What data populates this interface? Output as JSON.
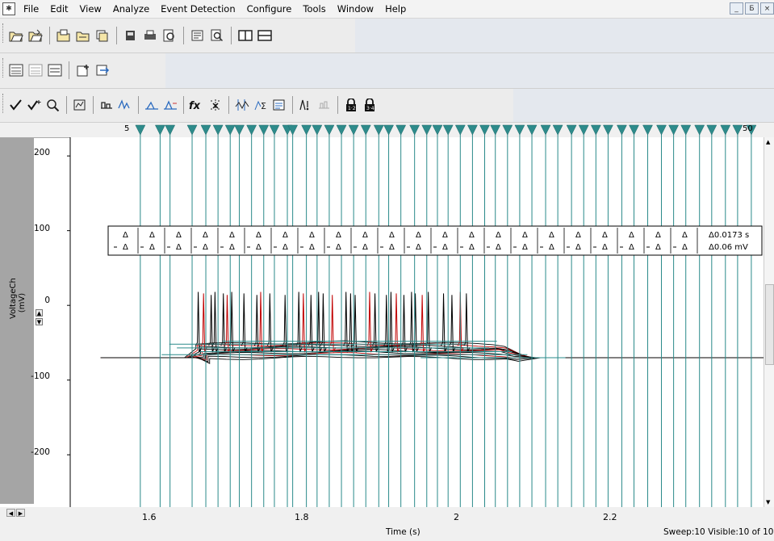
{
  "menubar": {
    "items": [
      "File",
      "Edit",
      "View",
      "Analyze",
      "Event Detection",
      "Configure",
      "Tools",
      "Window",
      "Help"
    ]
  },
  "window_buttons": [
    "_",
    "Б",
    "×"
  ],
  "toolbars": [
    {
      "icons": [
        "open-file-icon",
        "open-folder-icon",
        "sep",
        "open-data-icon",
        "save-icon",
        "save-all-icon",
        "sep",
        "print-device-icon",
        "print-icon",
        "print-preview-icon",
        "sep",
        "import-icon",
        "find-icon",
        "sep",
        "tile-vertical-icon",
        "tile-horizontal-icon"
      ]
    },
    {
      "icons": [
        "tile-windows-icon",
        "tile-disabled-icon",
        "arrange-icon",
        "sep",
        "insert-icon",
        "export-icon"
      ]
    },
    {
      "icons": [
        "checkmark-icon",
        "checkmark-plus-icon",
        "zoom-icon",
        "sep",
        "zoom-box-icon",
        "sep",
        "baseline-icon",
        "peak-icon",
        "sep",
        "threshold-icon",
        "rise-icon",
        "sep",
        "fx-icon",
        "fit-icon",
        "sep",
        "cursor-icon",
        "stats-icon",
        "results-icon",
        "sep",
        "event-icon",
        "disabled-icon",
        "sep",
        "lock-12-icon",
        "lock-34-icon"
      ]
    }
  ],
  "cursor_bar": {
    "left_label": "5",
    "right_label": "50"
  },
  "plot": {
    "y_axis_title": "VoltageCh",
    "y_axis_unit": "(mV)",
    "y_ticks": [
      "200",
      "100",
      "0",
      "-100",
      "-200"
    ],
    "x_ticks": [
      "1.6",
      "1.8",
      "2",
      "2.2"
    ],
    "x_axis_title": "Time (s)",
    "readout_dt": "Δ0.0173 s",
    "readout_dv": "Δ0.06 mV",
    "delta_symbol": "Δ",
    "status": "Sweep:10 Visible:10 of 10"
  },
  "chart_data": {
    "type": "line",
    "xlabel": "Time (s)",
    "ylabel": "VoltageCh (mV)",
    "xlim": [
      1.5,
      2.41
    ],
    "ylim": [
      -270,
      225
    ],
    "grid": false,
    "sweeps": 10,
    "baseline_mv": -70,
    "step_window_s": [
      1.65,
      2.07
    ],
    "depolarized_plateau_mv": -52,
    "spike_peak_mv": 18,
    "spike_times_s": [
      1.668,
      1.675,
      1.685,
      1.69,
      1.701,
      1.706,
      1.712,
      1.728,
      1.745,
      1.75,
      1.762,
      1.782,
      1.8,
      1.806,
      1.816,
      1.826,
      1.832,
      1.844,
      1.862,
      1.868,
      1.874,
      1.893,
      1.9,
      1.915,
      1.921,
      1.928,
      1.938,
      1.948,
      1.953,
      1.962,
      1.97,
      1.99,
      2.001,
      2.012,
      2.02
    ],
    "cursor_times_s": [
      1.592,
      1.618,
      1.631,
      1.66,
      1.678,
      1.694,
      1.71,
      1.722,
      1.738,
      1.754,
      1.768,
      1.785,
      1.792,
      1.81,
      1.824,
      1.84,
      1.856,
      1.872,
      1.888,
      1.905,
      1.918,
      1.934,
      1.952,
      1.968,
      1.982,
      1.996,
      2.012,
      2.028,
      2.044,
      2.058,
      2.074,
      2.09,
      2.106,
      2.124,
      2.14,
      2.158,
      2.174,
      2.19,
      2.206,
      2.224,
      2.24,
      2.258,
      2.276,
      2.292,
      2.308,
      2.326,
      2.342,
      2.36,
      2.376,
      2.394
    ]
  },
  "colors": {
    "cursor_line": "#2a8a8a",
    "cursor_marker": "#2e8b8b",
    "trace_black": "#000000",
    "trace_red": "#c00000"
  }
}
